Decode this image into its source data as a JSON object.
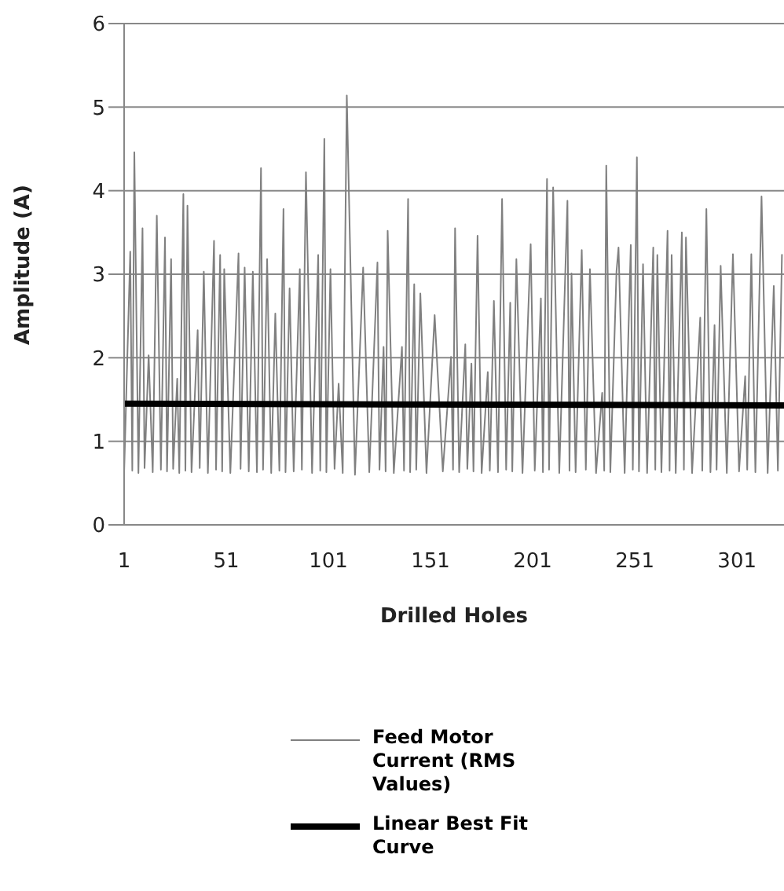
{
  "chart_data": {
    "type": "line",
    "xlabel": "Drilled Holes",
    "ylabel": "Amplitude (A)",
    "xlim": [
      1,
      324
    ],
    "xticks": [
      1,
      51,
      101,
      151,
      201,
      251,
      301
    ],
    "ylim": [
      0,
      6
    ],
    "yticks": [
      0,
      1,
      2,
      3,
      4,
      5,
      6
    ],
    "grid": "y",
    "legend": "bottom",
    "marker": "none",
    "line_style": "solid",
    "series": [
      {
        "name": "Feed Motor Current (RMS Values)",
        "color": "#808080",
        "x": [
          1,
          4,
          5,
          6,
          8,
          10,
          11,
          13,
          15,
          17,
          19,
          21,
          22,
          24,
          25,
          27,
          28,
          30,
          31,
          32,
          34,
          37,
          38,
          40,
          42,
          45,
          46,
          48,
          49,
          50,
          53,
          57,
          58,
          60,
          62,
          64,
          66,
          68,
          69,
          71,
          73,
          75,
          77,
          79,
          80,
          82,
          84,
          87,
          88,
          90,
          93,
          96,
          97,
          99,
          100,
          102,
          104,
          106,
          108,
          110,
          114,
          118,
          121,
          125,
          126,
          128,
          129,
          130,
          133,
          137,
          138,
          140,
          141,
          143,
          144,
          146,
          149,
          153,
          157,
          161,
          162,
          163,
          165,
          168,
          169,
          171,
          172,
          174,
          176,
          179,
          180,
          182,
          184,
          186,
          188,
          190,
          191,
          193,
          196,
          200,
          202,
          205,
          206,
          208,
          209,
          211,
          214,
          218,
          219,
          220,
          222,
          225,
          227,
          229,
          232,
          235,
          236,
          237,
          239,
          242,
          243,
          246,
          249,
          250,
          252,
          253,
          255,
          257,
          260,
          261,
          262,
          264,
          267,
          268,
          269,
          271,
          274,
          275,
          276,
          279,
          283,
          284,
          286,
          288,
          290,
          291,
          293,
          296,
          299,
          302,
          305,
          306,
          308,
          310,
          313,
          316,
          319,
          321,
          323
        ],
        "values": [
          0.62,
          3.27,
          0.65,
          4.46,
          0.62,
          3.55,
          0.68,
          2.03,
          0.63,
          3.7,
          0.66,
          3.44,
          0.64,
          3.18,
          0.67,
          1.75,
          0.62,
          3.96,
          0.65,
          3.82,
          0.63,
          2.33,
          0.68,
          3.03,
          0.62,
          3.4,
          0.66,
          3.23,
          0.64,
          3.06,
          0.62,
          3.25,
          0.67,
          3.08,
          0.64,
          3.03,
          0.63,
          4.27,
          0.66,
          3.18,
          0.62,
          2.53,
          0.65,
          3.78,
          0.63,
          2.83,
          0.64,
          3.06,
          0.66,
          4.22,
          0.62,
          3.23,
          0.65,
          4.62,
          0.63,
          3.06,
          0.67,
          1.69,
          0.62,
          5.14,
          0.6,
          3.08,
          0.63,
          3.14,
          0.66,
          2.13,
          0.64,
          3.52,
          0.62,
          2.13,
          0.65,
          3.9,
          0.63,
          2.88,
          0.66,
          2.77,
          0.62,
          2.51,
          0.64,
          2.01,
          0.66,
          3.55,
          0.63,
          2.16,
          0.67,
          1.93,
          0.64,
          3.46,
          0.62,
          1.83,
          0.65,
          2.68,
          0.63,
          3.9,
          0.66,
          2.66,
          0.64,
          3.18,
          0.62,
          3.36,
          0.65,
          2.71,
          0.63,
          4.14,
          0.66,
          4.04,
          0.62,
          3.88,
          0.65,
          3.01,
          0.63,
          3.29,
          0.66,
          3.06,
          0.62,
          1.58,
          0.65,
          4.3,
          0.63,
          3.03,
          3.32,
          0.62,
          3.35,
          0.66,
          4.4,
          0.64,
          3.12,
          0.62,
          3.32,
          0.66,
          3.23,
          0.63,
          3.52,
          0.65,
          3.23,
          0.62,
          3.5,
          0.66,
          3.44,
          0.62,
          2.48,
          0.65,
          3.78,
          0.63,
          2.39,
          0.66,
          3.1,
          0.62,
          3.24,
          0.64,
          1.78,
          0.66,
          3.24,
          0.63,
          3.93,
          0.62,
          2.86,
          0.65,
          3.24
        ]
      },
      {
        "name": "Linear Best Fit Curve",
        "color": "#000000",
        "x": [
          1,
          324
        ],
        "values": [
          1.45,
          1.43
        ]
      }
    ]
  }
}
